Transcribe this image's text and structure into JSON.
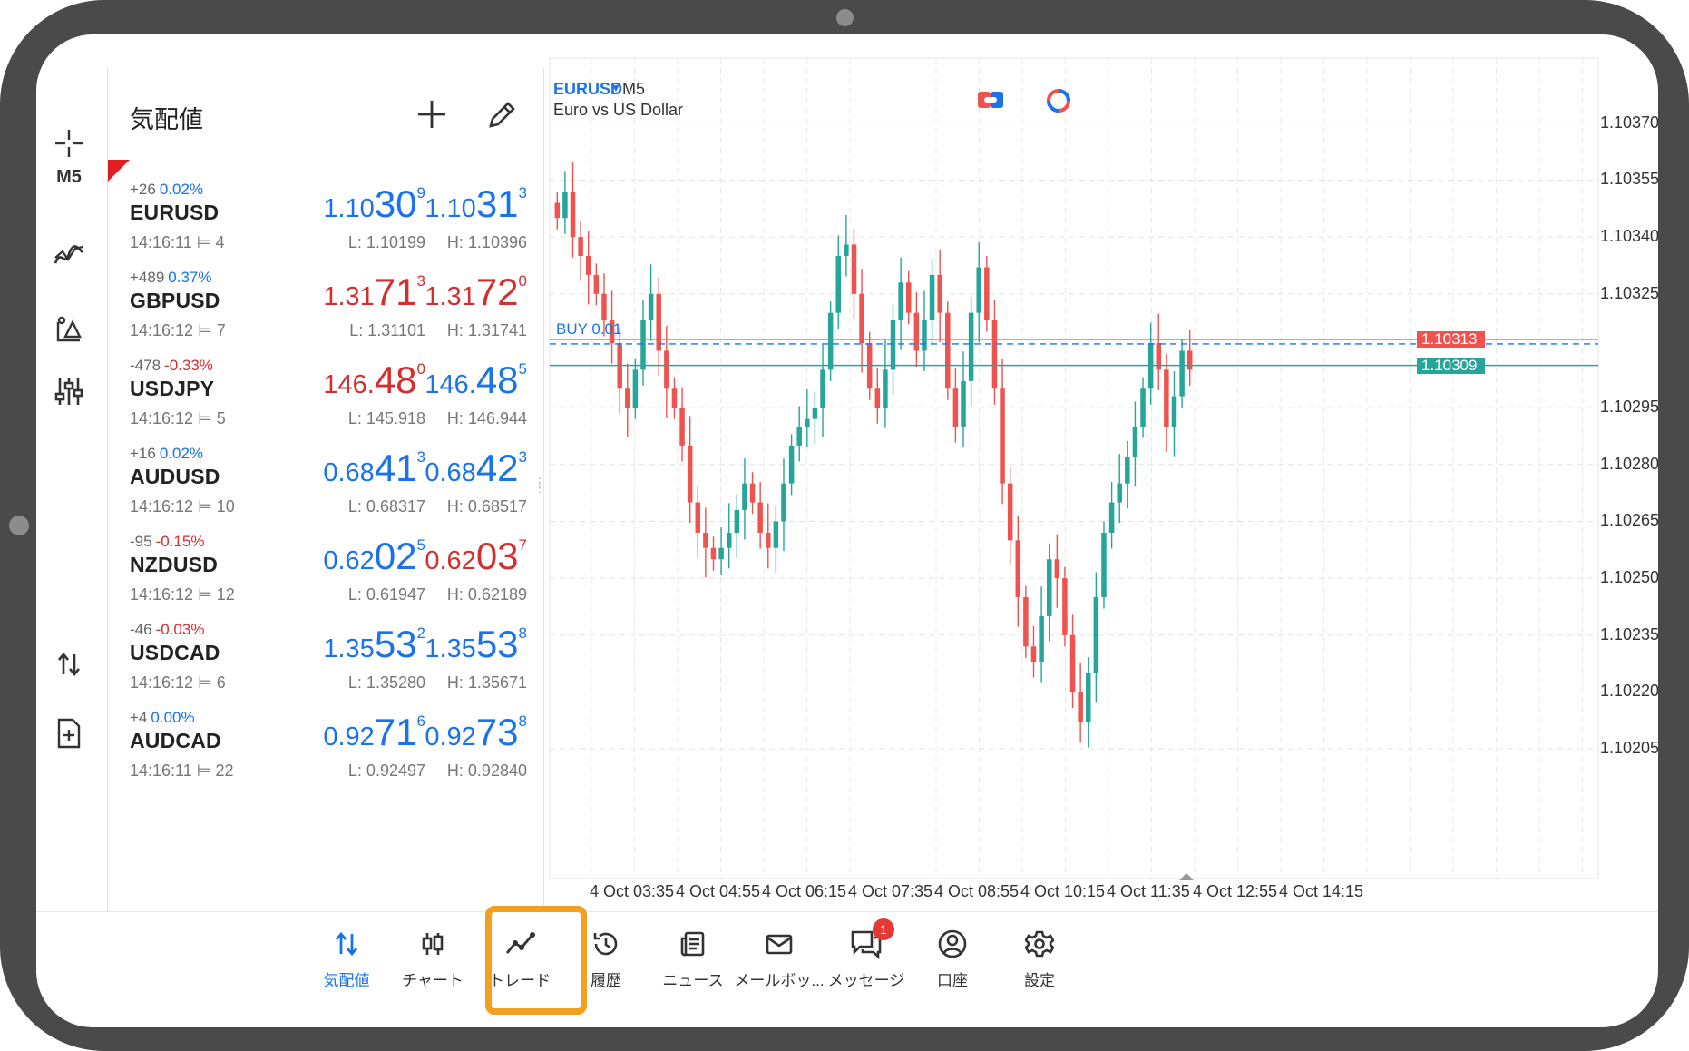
{
  "quotes": {
    "title": "気配値",
    "items": [
      {
        "symbol": "EURUSD",
        "change": "+26",
        "change_pct": "0.02%",
        "dir": "up",
        "time": "14:16:11",
        "spread": "4",
        "bid_pre": "1.10",
        "bid_big": "30",
        "bid_sup": "9",
        "bid_color": "up",
        "ask_pre": "1.10",
        "ask_big": "31",
        "ask_sup": "3",
        "ask_color": "up",
        "low": "L: 1.10199",
        "high": "H: 1.10396"
      },
      {
        "symbol": "GBPUSD",
        "change": "+489",
        "change_pct": "0.37%",
        "dir": "up",
        "time": "14:16:12",
        "spread": "7",
        "bid_pre": "1.31",
        "bid_big": "71",
        "bid_sup": "3",
        "bid_color": "down",
        "ask_pre": "1.31",
        "ask_big": "72",
        "ask_sup": "0",
        "ask_color": "down",
        "low": "L: 1.31101",
        "high": "H: 1.31741"
      },
      {
        "symbol": "USDJPY",
        "change": "-478",
        "change_pct": "-0.33%",
        "dir": "down",
        "time": "14:16:12",
        "spread": "5",
        "bid_pre": "146.",
        "bid_big": "48",
        "bid_sup": "0",
        "bid_color": "down",
        "ask_pre": "146.",
        "ask_big": "48",
        "ask_sup": "5",
        "ask_color": "up",
        "low": "L: 145.918",
        "high": "H: 146.944"
      },
      {
        "symbol": "AUDUSD",
        "change": "+16",
        "change_pct": "0.02%",
        "dir": "up",
        "time": "14:16:12",
        "spread": "10",
        "bid_pre": "0.68",
        "bid_big": "41",
        "bid_sup": "3",
        "bid_color": "up",
        "ask_pre": "0.68",
        "ask_big": "42",
        "ask_sup": "3",
        "ask_color": "up",
        "low": "L: 0.68317",
        "high": "H: 0.68517"
      },
      {
        "symbol": "NZDUSD",
        "change": "-95",
        "change_pct": "-0.15%",
        "dir": "down",
        "time": "14:16:12",
        "spread": "12",
        "bid_pre": "0.62",
        "bid_big": "02",
        "bid_sup": "5",
        "bid_color": "up",
        "ask_pre": "0.62",
        "ask_big": "03",
        "ask_sup": "7",
        "ask_color": "down",
        "low": "L: 0.61947",
        "high": "H: 0.62189"
      },
      {
        "symbol": "USDCAD",
        "change": "-46",
        "change_pct": "-0.03%",
        "dir": "down",
        "time": "14:16:12",
        "spread": "6",
        "bid_pre": "1.35",
        "bid_big": "53",
        "bid_sup": "2",
        "bid_color": "up",
        "ask_pre": "1.35",
        "ask_big": "53",
        "ask_sup": "8",
        "ask_color": "up",
        "low": "L: 1.35280",
        "high": "H: 1.35671"
      },
      {
        "symbol": "AUDCAD",
        "change": "+4",
        "change_pct": "0.00%",
        "dir": "up",
        "time": "14:16:11",
        "spread": "22",
        "bid_pre": "0.92",
        "bid_big": "71",
        "bid_sup": "6",
        "bid_color": "up",
        "ask_pre": "0.92",
        "ask_big": "73",
        "ask_sup": "8",
        "ask_color": "up",
        "low": "L: 0.92497",
        "high": "H: 0.92840"
      }
    ]
  },
  "toolbar": {
    "timeframe": "M5",
    "icons": [
      "crosshair-icon",
      "indicators-icon",
      "objects-icon",
      "settings-sliders-icon",
      "trade-arrows-icon",
      "new-order-icon"
    ]
  },
  "chart": {
    "symbol": "EURUSD",
    "timeframe": "M5",
    "description": "Euro vs US Dollar",
    "buy_label": "BUY 0.01",
    "ask_tag": "1.10313",
    "bid_tag": "1.10309",
    "time_labels": [
      "4 Oct 03:35",
      "4 Oct 04:55",
      "4 Oct 06:15",
      "4 Oct 07:35",
      "4 Oct 08:55",
      "4 Oct 10:15",
      "4 Oct 11:35",
      "4 Oct 12:55",
      "4 Oct 14:15"
    ]
  },
  "chart_data": {
    "type": "candlestick",
    "symbol": "EURUSD",
    "timeframe": "M5",
    "title": "EURUSD M5",
    "subtitle": "Euro vs US Dollar",
    "y_ticks": [
      "1.10370",
      "1.10355",
      "1.10340",
      "1.10325",
      "1.10295",
      "1.10280",
      "1.10265",
      "1.10250",
      "1.10235",
      "1.10220",
      "1.10205"
    ],
    "ylim": [
      1.10195,
      1.1038
    ],
    "x_ticks": [
      "4 Oct 03:35",
      "4 Oct 04:55",
      "4 Oct 06:15",
      "4 Oct 07:35",
      "4 Oct 08:55",
      "4 Oct 10:15",
      "4 Oct 11:35",
      "4 Oct 12:55",
      "4 Oct 14:15"
    ],
    "current_ask": 1.10313,
    "current_bid": 1.10309,
    "buy_position": {
      "label": "BUY 0.01",
      "price": 1.10309
    },
    "up_color": "#26a69a",
    "down_color": "#ef5350",
    "grid": true
  },
  "nav": {
    "items": [
      {
        "label": "気配値",
        "icon": "quotes-arrows-icon",
        "active": true
      },
      {
        "label": "チャート",
        "icon": "candlestick-icon",
        "active": false
      },
      {
        "label": "トレード",
        "icon": "trade-line-icon",
        "active": false
      },
      {
        "label": "履歴",
        "icon": "history-icon",
        "active": false
      },
      {
        "label": "ニュース",
        "icon": "news-icon",
        "active": false
      },
      {
        "label": "メールボッ...",
        "icon": "mail-icon",
        "active": false
      },
      {
        "label": "メッセージ",
        "icon": "messages-icon",
        "active": false,
        "badge": "1"
      },
      {
        "label": "口座",
        "icon": "account-icon",
        "active": false
      },
      {
        "label": "設定",
        "icon": "gear-icon",
        "active": false
      }
    ]
  }
}
